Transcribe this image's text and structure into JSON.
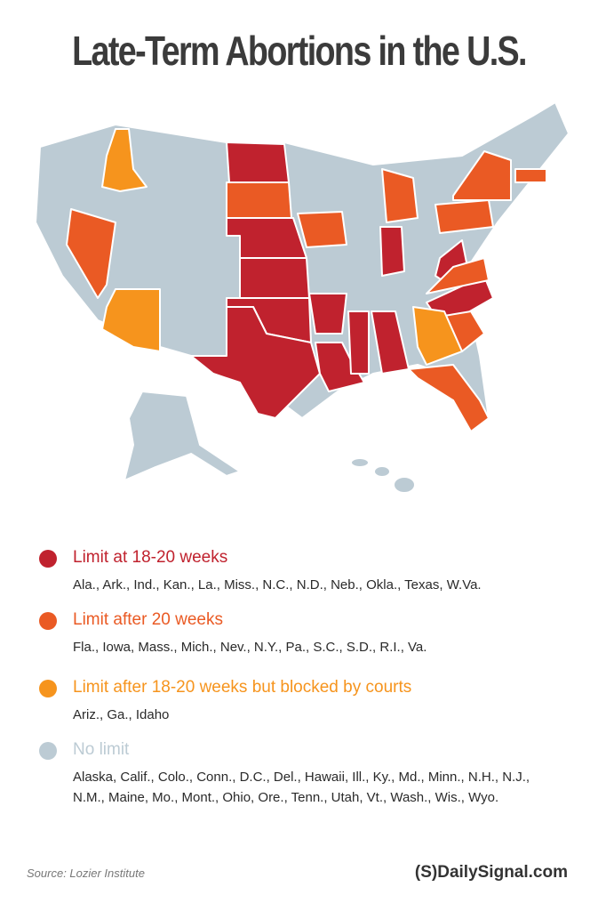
{
  "title": "Late-Term Abortions in the U.S.",
  "legend": [
    {
      "label": "Limit at 18-20 weeks",
      "states": "Ala., Ark., Ind., Kan., La., Miss., N.C., N.D., Neb., Okla., Texas, W.Va.",
      "color": "#c0222e"
    },
    {
      "label": "Limit after 20 weeks",
      "states": "Fla., Iowa, Mass., Mich., Nev., N.Y., Pa., S.C., S.D., R.I., Va.",
      "color": "#ea5a24"
    },
    {
      "label": "Limit after 18-20 weeks but blocked by courts",
      "states": "Ariz., Ga., Idaho",
      "color": "#f6941d"
    },
    {
      "label": "No limit",
      "states": "Alaska, Calif., Colo., Conn., D.C., Del., Hawaii, Ill., Ky., Md., Minn., N.H., N.J., N.M., Maine, Mo., Mont., Ohio, Ore., Tenn., Utah, Vt., Wash., Wis., Wyo.",
      "color": "#bccbd4"
    }
  ],
  "source": "Source: Lozier Institute",
  "brand": "(S)DailySignal.com"
}
